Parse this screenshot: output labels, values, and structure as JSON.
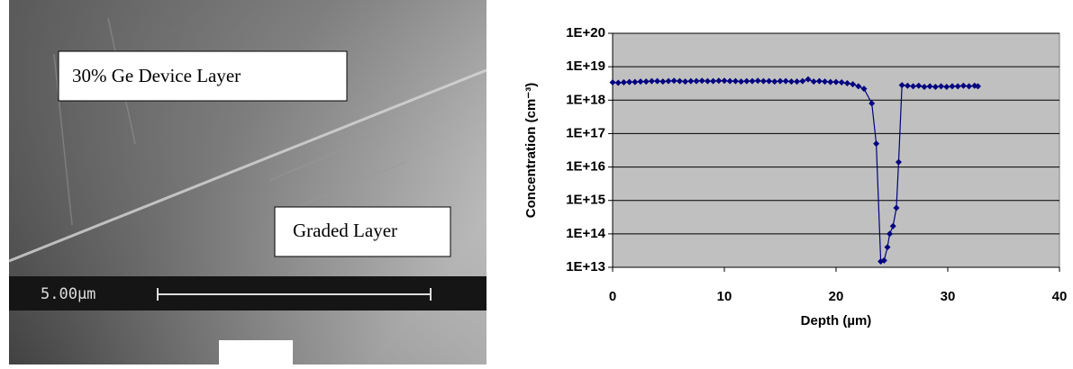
{
  "image": {
    "top_label": "30% Ge Device Layer",
    "bottom_label": "Graded Layer",
    "scale_label": "5.00µm"
  },
  "chart_data": {
    "type": "scatter",
    "x_label": "Depth (µm)",
    "y_label": "Concentration (cm⁻³)",
    "color": "#000080",
    "log_y": true,
    "grid": true,
    "xlim": [
      0,
      40
    ],
    "xticks": [
      0,
      10,
      20,
      30,
      40
    ],
    "ylim": [
      10000000000000.0,
      1e+20
    ],
    "yticks": [
      {
        "value": 10000000000000.0,
        "label": "1E+13"
      },
      {
        "value": 100000000000000.0,
        "label": "1E+14"
      },
      {
        "value": 1000000000000000.0,
        "label": "1E+15"
      },
      {
        "value": 1e+16,
        "label": "1E+16"
      },
      {
        "value": 1e+17,
        "label": "1E+17"
      },
      {
        "value": 1e+18,
        "label": "1E+18"
      },
      {
        "value": 1e+19,
        "label": "1E+19"
      },
      {
        "value": 1e+20,
        "label": "1E+20"
      }
    ],
    "x": [
      0,
      0.5,
      1,
      1.5,
      2,
      2.5,
      3,
      3.5,
      4,
      4.5,
      5,
      5.5,
      6,
      6.5,
      7,
      7.5,
      8,
      8.5,
      9,
      9.5,
      10,
      10.5,
      11,
      11.5,
      12,
      12.5,
      13,
      13.5,
      14,
      14.5,
      15,
      15.5,
      16,
      16.5,
      17,
      17.5,
      18,
      18.5,
      19,
      19.5,
      20,
      20.5,
      21,
      21.5,
      22,
      22.5,
      23.2,
      23.6,
      24.0,
      24.3,
      24.6,
      24.8,
      25.1,
      25.4,
      25.6,
      25.9,
      26.4,
      26.9,
      27.4,
      27.9,
      28.4,
      28.9,
      29.4,
      29.9,
      30.4,
      30.9,
      31.4,
      31.9,
      32.4,
      32.7
    ],
    "values": [
      3.4e+18,
      3.3e+18,
      3.4e+18,
      3.5e+18,
      3.5e+18,
      3.6e+18,
      3.6e+18,
      3.7e+18,
      3.7e+18,
      3.6e+18,
      3.7e+18,
      3.8e+18,
      3.7e+18,
      3.6e+18,
      3.7e+18,
      3.7e+18,
      3.8e+18,
      3.7e+18,
      3.7e+18,
      3.8e+18,
      3.8e+18,
      3.7e+18,
      3.7e+18,
      3.6e+18,
      3.7e+18,
      3.7e+18,
      3.8e+18,
      3.7e+18,
      3.7e+18,
      3.6e+18,
      3.7e+18,
      3.7e+18,
      3.6e+18,
      3.6e+18,
      3.7e+18,
      4.2e+18,
      3.6e+18,
      3.7e+18,
      3.6e+18,
      3.5e+18,
      3.5e+18,
      3.4e+18,
      3.2e+18,
      3e+18,
      2.6e+18,
      2.2e+18,
      8e+17,
      5e+16,
      15000000000000.0,
      16000000000000.0,
      40000000000000.0,
      100000000000000.0,
      170000000000000.0,
      600000000000000.0,
      1.4e+16,
      2.8e+18,
      2.7e+18,
      2.6e+18,
      2.7e+18,
      2.5e+18,
      2.6e+18,
      2.5e+18,
      2.6e+18,
      2.5e+18,
      2.6e+18,
      2.6e+18,
      2.7e+18,
      2.6e+18,
      2.7e+18,
      2.6e+18
    ]
  }
}
